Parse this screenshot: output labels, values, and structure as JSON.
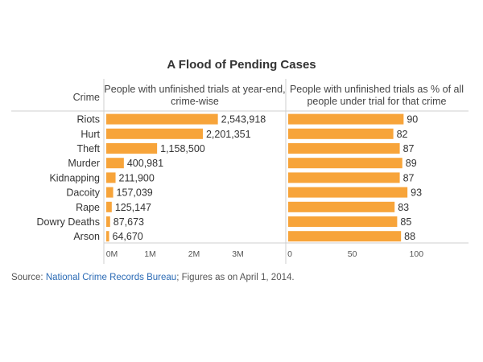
{
  "chart_data": {
    "type": "bar",
    "title": "A Flood of Pending Cases",
    "row_header": "Crime",
    "categories": [
      "Riots",
      "Hurt",
      "Theft",
      "Murder",
      "Kidnapping",
      "Dacoity",
      "Rape",
      "Dowry Deaths",
      "Arson"
    ],
    "series": [
      {
        "name": "People with unfinished trials at year-end, crime-wise",
        "header_lines": [
          "People with unfinished trials at year-end,",
          "crime-wise"
        ],
        "values": [
          2543918,
          2201351,
          1158500,
          400981,
          211900,
          157039,
          125147,
          87673,
          64670
        ],
        "labels": [
          "2,543,918",
          "2,201,351",
          "1,158,500",
          "400,981",
          "211,900",
          "157,039",
          "125,147",
          "87,673",
          "64,670"
        ],
        "xlim": [
          0,
          4000000
        ],
        "ticks": [
          0,
          1000000,
          2000000,
          3000000
        ],
        "tick_labels": [
          "0M",
          "1M",
          "2M",
          "3M"
        ]
      },
      {
        "name": "People with unfinished trials as % of all people under trial for that crime",
        "header_lines": [
          "People with unfinished trials as % of all",
          "people under trial for that crime"
        ],
        "values": [
          90,
          82,
          87,
          89,
          87,
          93,
          83,
          85,
          88
        ],
        "labels": [
          "90",
          "82",
          "87",
          "89",
          "87",
          "93",
          "83",
          "85",
          "88"
        ],
        "xlim": [
          0,
          140
        ],
        "ticks": [
          0,
          50,
          100
        ],
        "tick_labels": [
          "0",
          "50",
          "100"
        ]
      }
    ],
    "bar_color": "#f7a43a"
  },
  "source": {
    "prefix": "Source: ",
    "link_text": "National Crime Records Bureau",
    "suffix": "; Figures as on April 1, 2014."
  }
}
